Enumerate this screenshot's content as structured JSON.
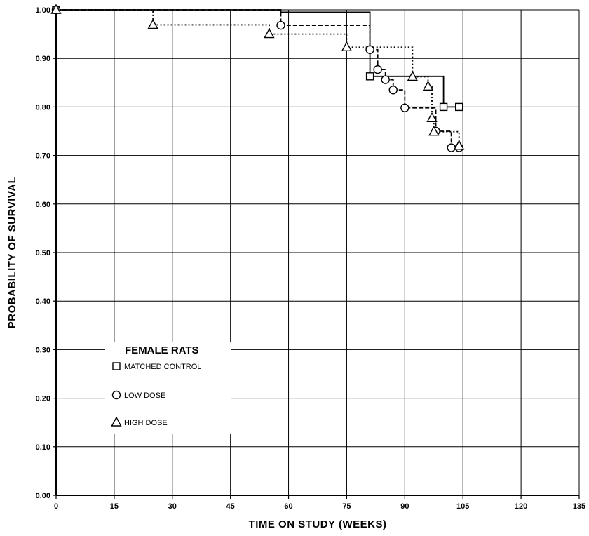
{
  "chart_data": {
    "type": "line",
    "xlabel": "TIME ON STUDY (WEEKS)",
    "ylabel": "PROBABILITY OF SURVIVAL",
    "xlim": [
      0,
      135
    ],
    "ylim": [
      0,
      1
    ],
    "x_ticks": [
      0,
      15,
      30,
      45,
      60,
      75,
      90,
      105,
      120,
      135
    ],
    "x_tick_labels": [
      "0",
      "15",
      "30",
      "45",
      "60",
      "75",
      "90",
      "105",
      "120",
      "135"
    ],
    "y_ticks": [
      0,
      0.1,
      0.2,
      0.3,
      0.4,
      0.5,
      0.6,
      0.7,
      0.8,
      0.9,
      1.0
    ],
    "y_tick_labels": [
      "0.00",
      "0.10",
      "0.20",
      "0.30",
      "0.40",
      "0.50",
      "0.60",
      "0.70",
      "0.80",
      "0.90",
      "1.00"
    ],
    "grid": true,
    "legend": {
      "title": "FEMALE RATS",
      "placement": "lower-left"
    },
    "series": [
      {
        "name": "MATCHED CONTROL",
        "marker": "square",
        "line_style": "solid",
        "color": "#000000",
        "steps": [
          [
            0,
            1.0
          ],
          [
            58,
            1.0
          ],
          [
            58,
            0.995
          ],
          [
            81,
            0.995
          ],
          [
            81,
            0.863
          ],
          [
            100,
            0.863
          ],
          [
            100,
            0.8
          ],
          [
            104,
            0.8
          ]
        ],
        "markers": [
          [
            0,
            1.0
          ],
          [
            81,
            0.863
          ],
          [
            100,
            0.8
          ],
          [
            104,
            0.8
          ]
        ]
      },
      {
        "name": "LOW DOSE",
        "marker": "circle",
        "line_style": "dashed",
        "color": "#000000",
        "steps": [
          [
            0,
            1.0
          ],
          [
            58,
            1.0
          ],
          [
            58,
            0.968
          ],
          [
            81,
            0.968
          ],
          [
            81,
            0.918
          ],
          [
            83,
            0.918
          ],
          [
            83,
            0.877
          ],
          [
            85,
            0.877
          ],
          [
            85,
            0.856
          ],
          [
            87,
            0.856
          ],
          [
            87,
            0.835
          ],
          [
            90,
            0.835
          ],
          [
            90,
            0.798
          ],
          [
            98,
            0.798
          ],
          [
            98,
            0.75
          ],
          [
            102,
            0.75
          ],
          [
            102,
            0.716
          ],
          [
            104,
            0.716
          ]
        ],
        "markers": [
          [
            0,
            1.0
          ],
          [
            58,
            0.968
          ],
          [
            81,
            0.918
          ],
          [
            83,
            0.877
          ],
          [
            85,
            0.856
          ],
          [
            87,
            0.835
          ],
          [
            90,
            0.798
          ],
          [
            98,
            0.75
          ],
          [
            102,
            0.716
          ],
          [
            104,
            0.716
          ]
        ]
      },
      {
        "name": "HIGH DOSE",
        "marker": "triangle",
        "line_style": "dotted",
        "color": "#000000",
        "steps": [
          [
            0,
            1.0
          ],
          [
            25,
            1.0
          ],
          [
            25,
            0.969
          ],
          [
            55,
            0.969
          ],
          [
            55,
            0.95
          ],
          [
            75,
            0.95
          ],
          [
            75,
            0.923
          ],
          [
            92,
            0.923
          ],
          [
            92,
            0.862
          ],
          [
            96,
            0.862
          ],
          [
            96,
            0.842
          ],
          [
            97,
            0.842
          ],
          [
            97,
            0.777
          ],
          [
            97.5,
            0.777
          ],
          [
            97.5,
            0.749
          ],
          [
            104,
            0.749
          ],
          [
            104,
            0.72
          ]
        ],
        "markers": [
          [
            0,
            1.0
          ],
          [
            25,
            0.969
          ],
          [
            55,
            0.95
          ],
          [
            75,
            0.923
          ],
          [
            92,
            0.862
          ],
          [
            96,
            0.842
          ],
          [
            97,
            0.777
          ],
          [
            97.5,
            0.749
          ],
          [
            104,
            0.72
          ]
        ]
      }
    ]
  }
}
